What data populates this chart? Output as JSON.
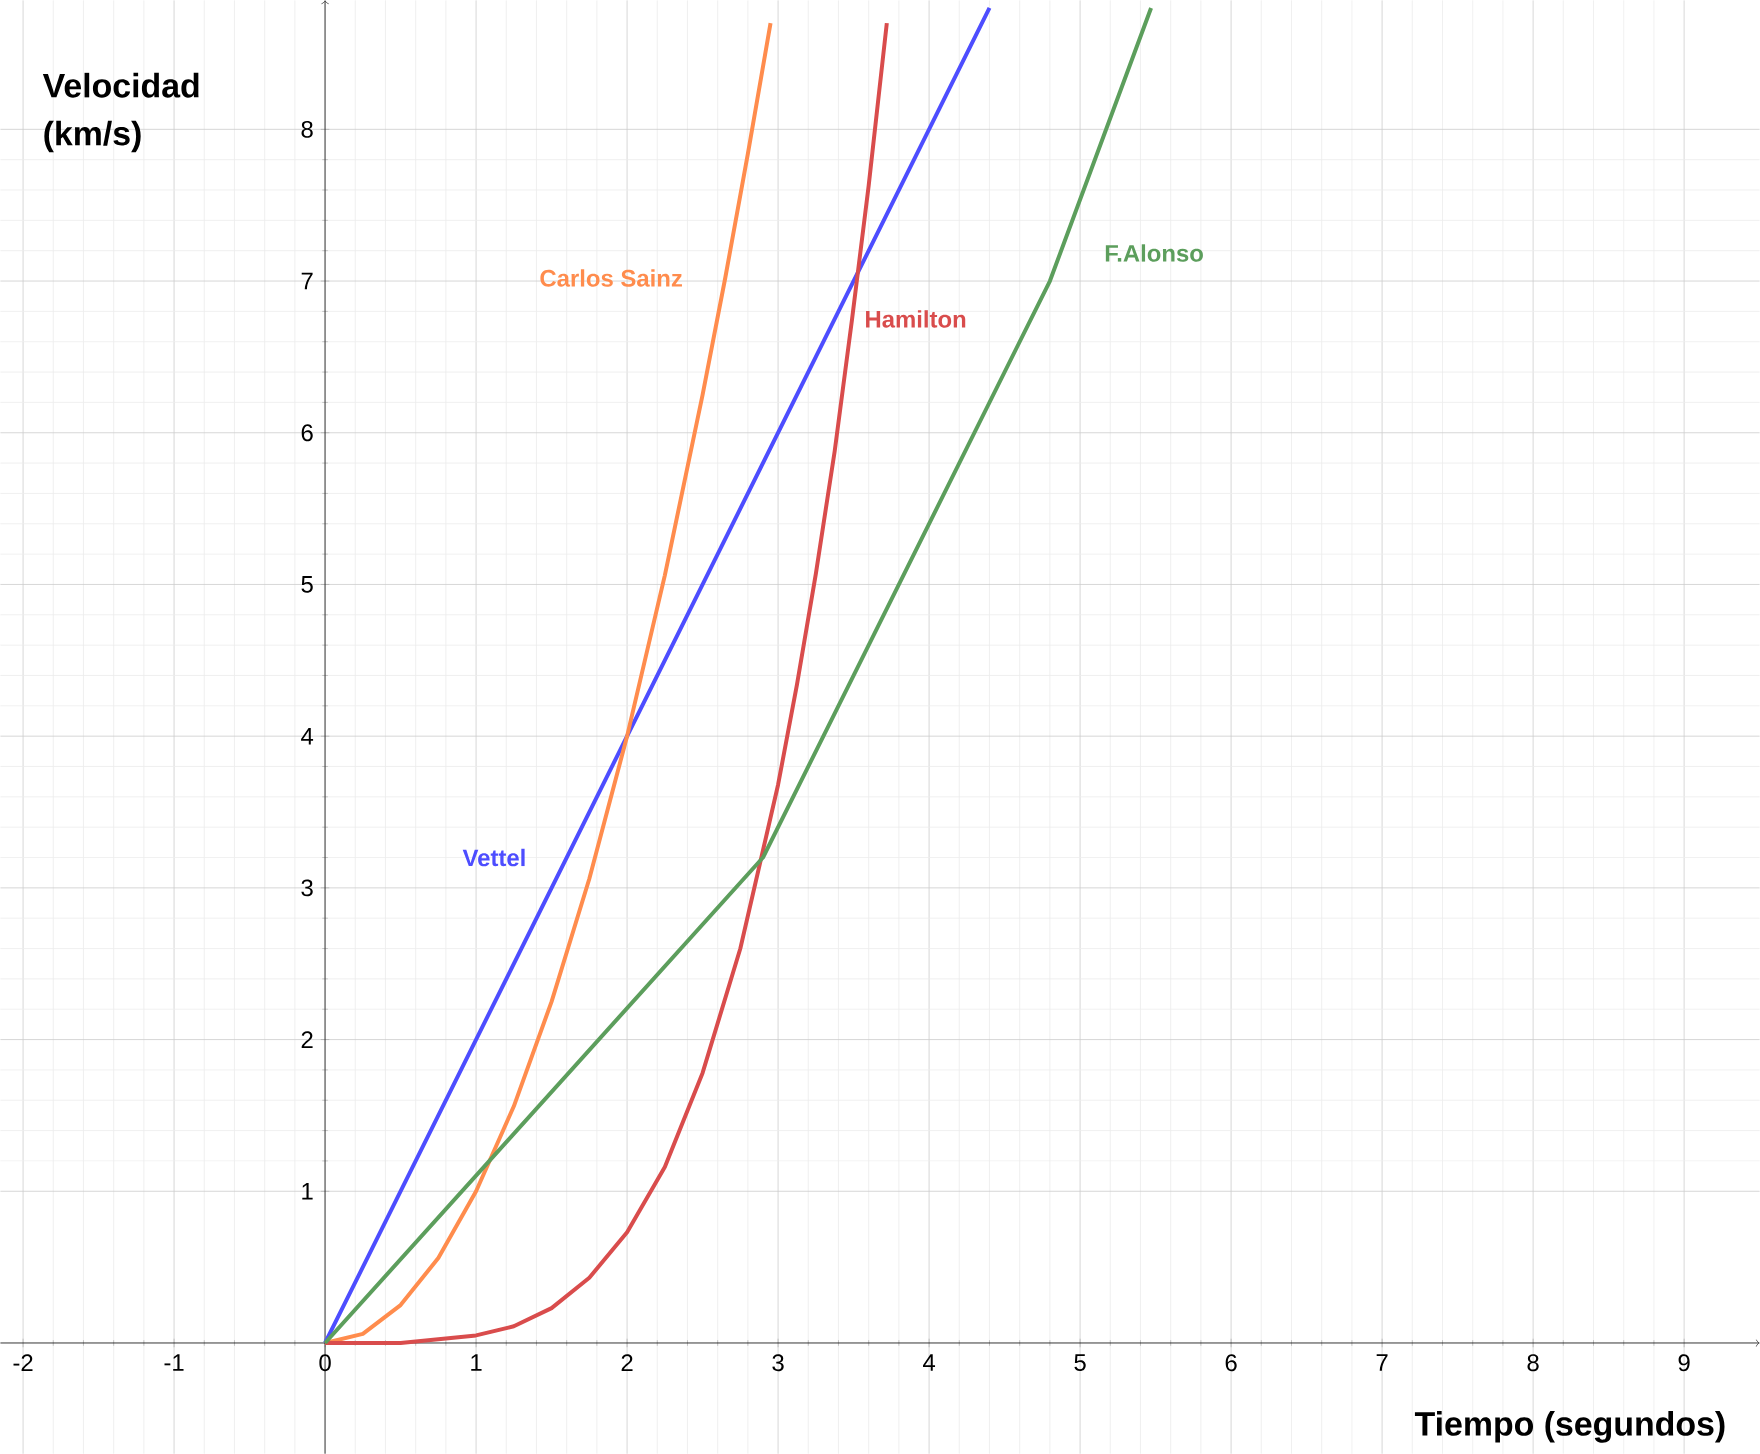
{
  "chart_data": {
    "type": "line",
    "xlabel": "Tiempo (segundos)",
    "ylabel": "Velocidad (km/s)",
    "xlim": [
      -2.15,
      9.5
    ],
    "ylim": [
      -0.73,
      8.85
    ],
    "xticks": [
      -2,
      -1,
      0,
      1,
      2,
      3,
      4,
      5,
      6,
      7,
      8,
      9
    ],
    "yticks": [
      1,
      2,
      3,
      4,
      5,
      6,
      7,
      8
    ],
    "grid": true,
    "series": [
      {
        "name": "Vettel",
        "color": "#4d4dff",
        "x": [
          0,
          1.6,
          4.4
        ],
        "values": [
          0,
          3.2,
          8.8
        ]
      },
      {
        "name": "Carlos Sainz",
        "color": "#ff8c4d",
        "x": [
          0,
          0.25,
          0.5,
          0.75,
          1,
          1.25,
          1.5,
          1.75,
          2,
          2.25,
          2.5,
          2.65,
          2.8,
          2.95
        ],
        "values": [
          0,
          0.06,
          0.25,
          0.56,
          1,
          1.56,
          2.25,
          3.06,
          4,
          5.06,
          6.25,
          7.02,
          7.84,
          8.7
        ]
      },
      {
        "name": "Hamilton",
        "color": "#d94c4c",
        "x": [
          0,
          0.5,
          1,
          1.25,
          1.5,
          1.75,
          2,
          2.25,
          2.5,
          2.75,
          3,
          3.125,
          3.25,
          3.375,
          3.49,
          3.6,
          3.72
        ],
        "values": [
          0,
          0,
          0.05,
          0.11,
          0.23,
          0.43,
          0.73,
          1.16,
          1.78,
          2.6,
          3.68,
          4.34,
          5.07,
          5.88,
          6.75,
          7.63,
          8.7
        ]
      },
      {
        "name": "F.Alonso",
        "color": "#5c9e5c",
        "x": [
          0,
          2.9,
          4.8,
          5.47
        ],
        "values": [
          0,
          3.2,
          7.0,
          8.8
        ]
      }
    ]
  }
}
